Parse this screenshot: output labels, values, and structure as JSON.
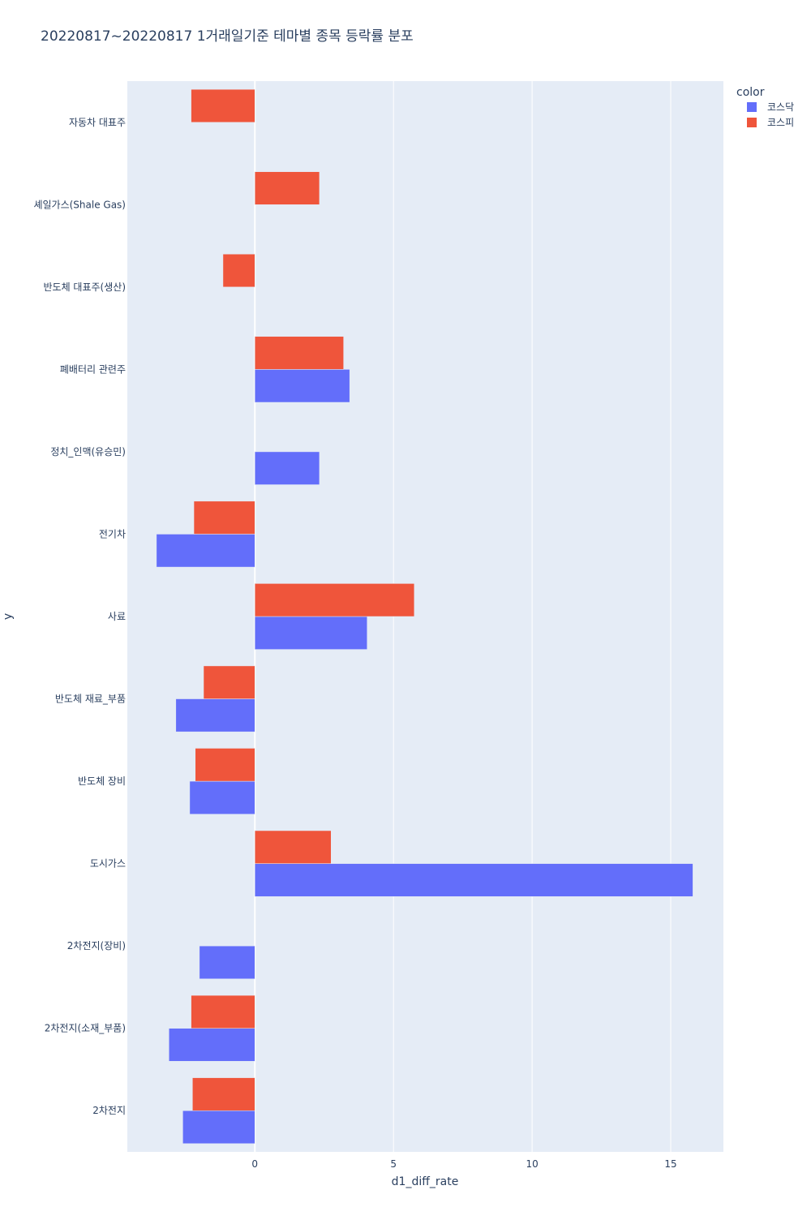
{
  "chart_data": {
    "type": "bar",
    "orientation": "horizontal",
    "title": "20220817~20220817 1거래일기준 테마별 종목 등락률 분포",
    "xlabel": "d1_diff_rate",
    "ylabel": "y",
    "xlim": [
      -4.6,
      16.9
    ],
    "xticks": [
      0,
      5,
      10,
      15
    ],
    "grid": true,
    "legend": {
      "title": "color",
      "position": "top-right"
    },
    "categories": [
      "2차전지",
      "2차전지(소재_부품)",
      "2차전지(장비)",
      "도시가스",
      "반도체 장비",
      "반도체 재료_부품",
      "사료",
      "전기차",
      "정치_인맥(유승민)",
      "폐배터리 관련주",
      "반도체 대표주(생산)",
      "셰일가스(Shale Gas)",
      "자동차 대표주"
    ],
    "series": [
      {
        "name": "코스닥",
        "color": "#636efa",
        "values": [
          -2.6,
          -3.1,
          -2.0,
          15.8,
          -2.35,
          -2.85,
          4.05,
          -3.55,
          2.33,
          3.42,
          null,
          null,
          null
        ]
      },
      {
        "name": "코스피",
        "color": "#ef553b",
        "values": [
          -2.25,
          -2.3,
          null,
          2.75,
          -2.15,
          -1.85,
          5.75,
          -2.2,
          null,
          3.2,
          -1.15,
          2.33,
          -2.3
        ]
      }
    ]
  }
}
